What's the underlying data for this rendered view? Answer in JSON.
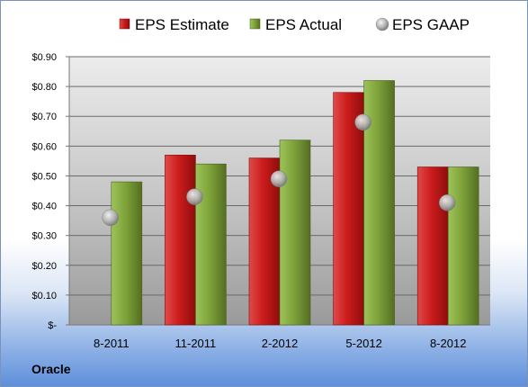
{
  "company": "Oracle",
  "chart_data": {
    "type": "bar",
    "categories": [
      "8-2011",
      "11-2011",
      "2-2012",
      "5-2012",
      "8-2012"
    ],
    "series": [
      {
        "name": "EPS Estimate",
        "kind": "bar",
        "color": "#cc2020",
        "values": [
          null,
          0.57,
          0.56,
          0.78,
          0.53
        ]
      },
      {
        "name": "EPS Actual",
        "kind": "bar",
        "color": "#7fa33a",
        "values": [
          0.48,
          0.54,
          0.62,
          0.82,
          0.53
        ]
      },
      {
        "name": "EPS GAAP",
        "kind": "marker",
        "color": "#b8b8b8",
        "values": [
          0.36,
          0.43,
          0.49,
          0.68,
          0.41
        ]
      }
    ],
    "yticks": [
      "$-",
      "$0.10",
      "$0.20",
      "$0.30",
      "$0.40",
      "$0.50",
      "$0.60",
      "$0.70",
      "$0.80",
      "$0.90"
    ],
    "ylim": [
      0,
      0.9
    ],
    "grid": true,
    "legend": "top"
  }
}
